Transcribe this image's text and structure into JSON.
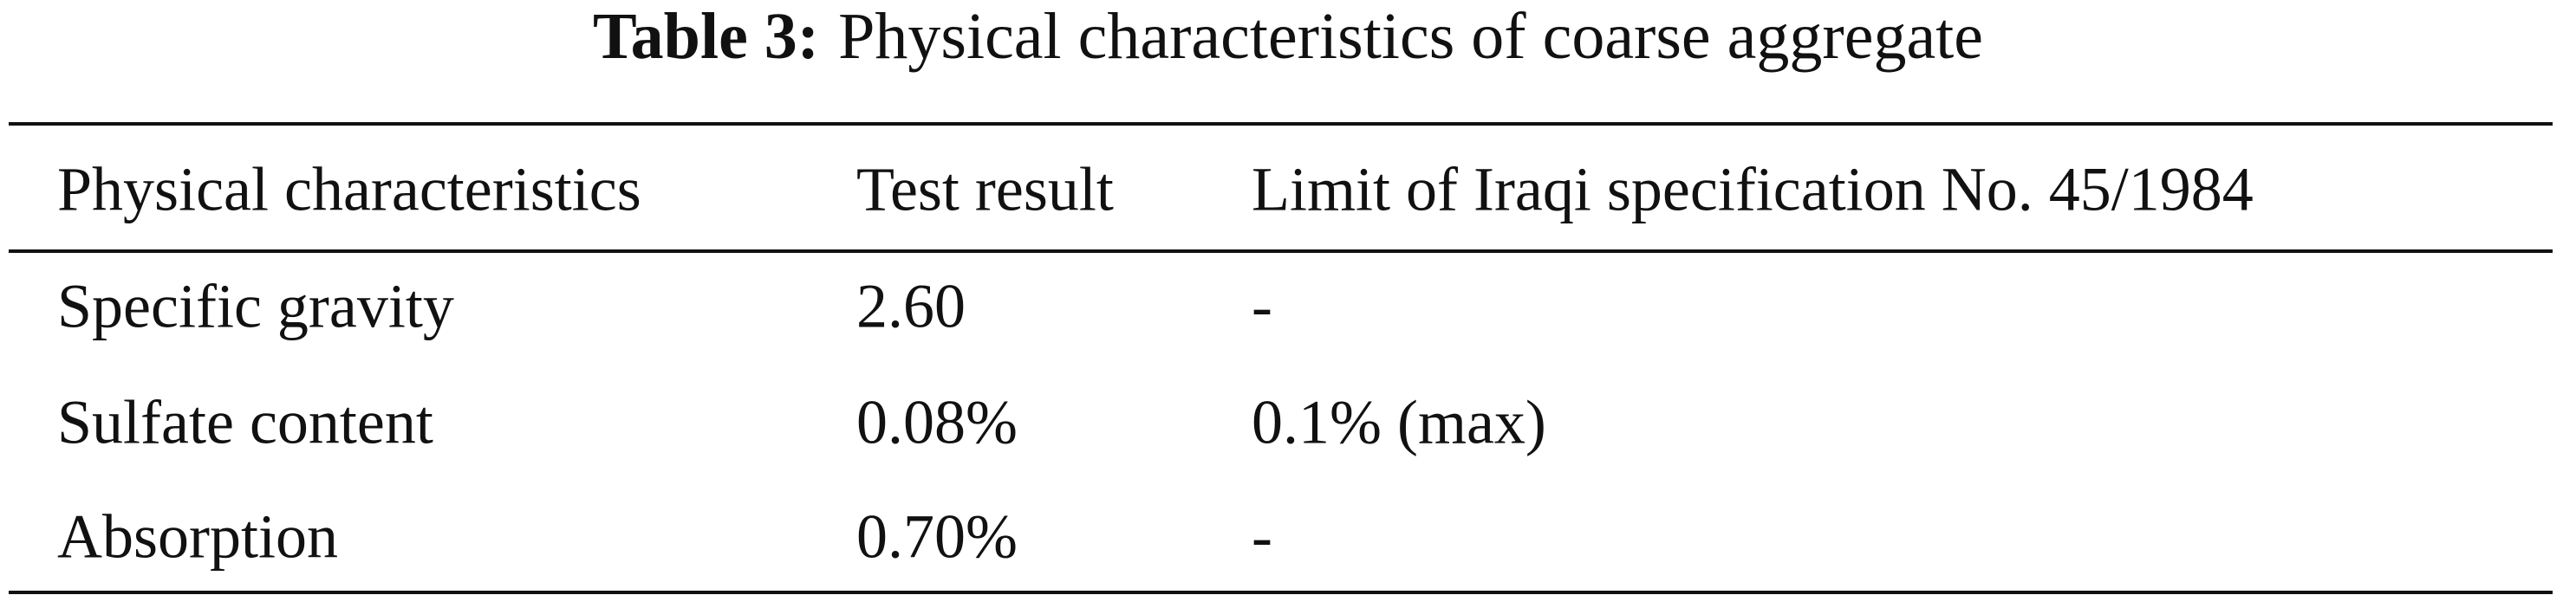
{
  "caption": {
    "label": "Table 3:",
    "text": "Physical characteristics of coarse aggregate"
  },
  "table": {
    "columns": [
      "Physical characteristics",
      "Test result",
      "Limit of Iraqi specification No. 45/1984"
    ],
    "rows": [
      [
        "Specific gravity",
        "2.60",
        "-"
      ],
      [
        "Sulfate content",
        "0.08%",
        "0.1% (max)"
      ],
      [
        "Absorption",
        "0.70%",
        "-"
      ]
    ]
  }
}
